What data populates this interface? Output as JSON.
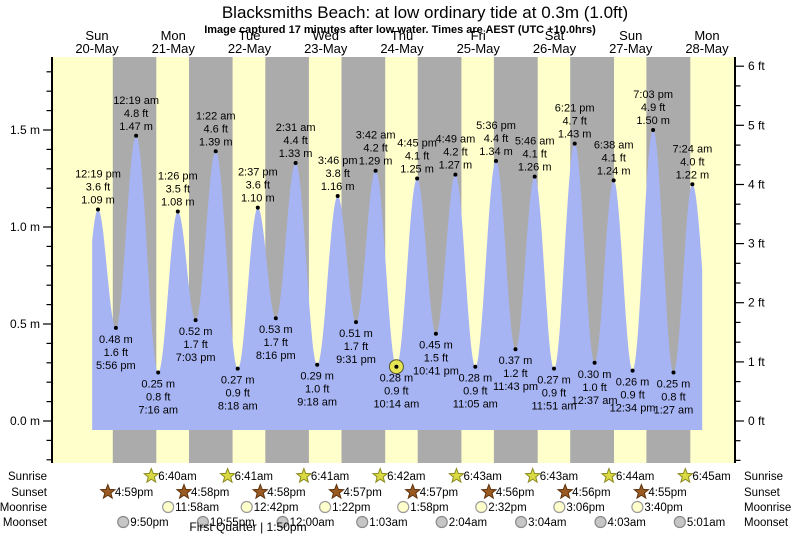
{
  "chart_data": {
    "type": "area",
    "title": "Blacksmiths Beach: at low  ordinary tide at 0.3m (1.0ft)",
    "subtitle": "Image captured 17 minutes after low water. Times are AEST (UTC +10.0hrs)",
    "ylabel_left_unit": "m",
    "ylabel_right_unit": "ft",
    "ylim_m": [
      -0.22,
      1.88
    ],
    "y_ticks_m": [
      "0.0 m",
      "0.5 m",
      "1.0 m",
      "1.5 m"
    ],
    "y_ticks_ft": [
      "0 ft",
      "1 ft",
      "2 ft",
      "3 ft",
      "4 ft",
      "5 ft",
      "6 ft"
    ],
    "days": [
      {
        "name": "Sun",
        "date": "20-May"
      },
      {
        "name": "Mon",
        "date": "21-May"
      },
      {
        "name": "Tue",
        "date": "22-May"
      },
      {
        "name": "Wed",
        "date": "23-May"
      },
      {
        "name": "Thu",
        "date": "24-May"
      },
      {
        "name": "Fri",
        "date": "25-May"
      },
      {
        "name": "Sat",
        "date": "26-May"
      },
      {
        "name": "Sun",
        "date": "27-May"
      },
      {
        "name": "Mon",
        "date": "28-May"
      }
    ],
    "tide_extremes": [
      {
        "kind": "high",
        "day_index": 0,
        "time": "12:19 pm",
        "height_ft": 3.6,
        "height_m": 1.09
      },
      {
        "kind": "low",
        "day_index": 0,
        "time": "5:56 pm",
        "height_ft": 1.6,
        "height_m": 0.48
      },
      {
        "kind": "high",
        "day_index": 1,
        "time": "12:19 am",
        "height_ft": 4.8,
        "height_m": 1.47
      },
      {
        "kind": "low",
        "day_index": 1,
        "time": "7:16 am",
        "height_ft": 0.8,
        "height_m": 0.25
      },
      {
        "kind": "high",
        "day_index": 1,
        "time": "1:26 pm",
        "height_ft": 3.5,
        "height_m": 1.08
      },
      {
        "kind": "low",
        "day_index": 1,
        "time": "7:03 pm",
        "height_ft": 1.7,
        "height_m": 0.52
      },
      {
        "kind": "high",
        "day_index": 2,
        "time": "1:22 am",
        "height_ft": 4.6,
        "height_m": 1.39
      },
      {
        "kind": "low",
        "day_index": 2,
        "time": "8:18 am",
        "height_ft": 0.9,
        "height_m": 0.27
      },
      {
        "kind": "high",
        "day_index": 2,
        "time": "2:37 pm",
        "height_ft": 3.6,
        "height_m": 1.1
      },
      {
        "kind": "low",
        "day_index": 2,
        "time": "8:16 pm",
        "height_ft": 1.7,
        "height_m": 0.53
      },
      {
        "kind": "high",
        "day_index": 3,
        "time": "2:31 am",
        "height_ft": 4.4,
        "height_m": 1.33
      },
      {
        "kind": "low",
        "day_index": 3,
        "time": "9:18 am",
        "height_ft": 1.0,
        "height_m": 0.29
      },
      {
        "kind": "high",
        "day_index": 3,
        "time": "3:46 pm",
        "height_ft": 3.8,
        "height_m": 1.16
      },
      {
        "kind": "low",
        "day_index": 3,
        "time": "9:31 pm",
        "height_ft": 1.7,
        "height_m": 0.51
      },
      {
        "kind": "high",
        "day_index": 4,
        "time": "3:42 am",
        "height_ft": 4.2,
        "height_m": 1.29
      },
      {
        "kind": "low",
        "day_index": 4,
        "time": "10:14 am",
        "height_ft": 0.9,
        "height_m": 0.28,
        "now": true
      },
      {
        "kind": "high",
        "day_index": 4,
        "time": "4:45 pm",
        "height_ft": 4.1,
        "height_m": 1.25
      },
      {
        "kind": "low",
        "day_index": 4,
        "time": "10:41 pm",
        "height_ft": 1.5,
        "height_m": 0.45
      },
      {
        "kind": "high",
        "day_index": 5,
        "time": "4:49 am",
        "height_ft": 4.2,
        "height_m": 1.27
      },
      {
        "kind": "low",
        "day_index": 5,
        "time": "11:05 am",
        "height_ft": 0.9,
        "height_m": 0.28
      },
      {
        "kind": "high",
        "day_index": 5,
        "time": "5:36 pm",
        "height_ft": 4.4,
        "height_m": 1.34
      },
      {
        "kind": "low",
        "day_index": 5,
        "time": "11:43 pm",
        "height_ft": 1.2,
        "height_m": 0.37
      },
      {
        "kind": "high",
        "day_index": 6,
        "time": "5:46 am",
        "height_ft": 4.1,
        "height_m": 1.26
      },
      {
        "kind": "low",
        "day_index": 6,
        "time": "11:51 am",
        "height_ft": 0.9,
        "height_m": 0.27
      },
      {
        "kind": "high",
        "day_index": 6,
        "time": "6:21 pm",
        "height_ft": 4.7,
        "height_m": 1.43
      },
      {
        "kind": "low",
        "day_index": 7,
        "time": "12:37 am",
        "height_ft": 1.0,
        "height_m": 0.3
      },
      {
        "kind": "high",
        "day_index": 7,
        "time": "6:38 am",
        "height_ft": 4.1,
        "height_m": 1.24
      },
      {
        "kind": "low",
        "day_index": 7,
        "time": "12:34 pm",
        "height_ft": 0.9,
        "height_m": 0.26
      },
      {
        "kind": "high",
        "day_index": 7,
        "time": "7:03 pm",
        "height_ft": 4.9,
        "height_m": 1.5
      },
      {
        "kind": "low",
        "day_index": 8,
        "time": "1:27 am",
        "height_ft": 0.8,
        "height_m": 0.25
      },
      {
        "kind": "high",
        "day_index": 8,
        "time": "7:24 am",
        "height_ft": 4.0,
        "height_m": 1.22
      }
    ],
    "now_marker": {
      "tide_index": 15
    }
  },
  "astro": {
    "row_labels": [
      "Sunrise",
      "Sunset",
      "Moonrise",
      "Moonset"
    ],
    "sunrise_icon": "star",
    "sunset_icon": "star",
    "moonrise_icon": "circle",
    "moonset_icon": "circle",
    "sunrise": [
      {
        "day_index": 1,
        "time": "6:40am"
      },
      {
        "day_index": 2,
        "time": "6:41am"
      },
      {
        "day_index": 3,
        "time": "6:41am"
      },
      {
        "day_index": 4,
        "time": "6:42am"
      },
      {
        "day_index": 5,
        "time": "6:43am"
      },
      {
        "day_index": 6,
        "time": "6:43am"
      },
      {
        "day_index": 7,
        "time": "6:44am"
      },
      {
        "day_index": 8,
        "time": "6:45am"
      }
    ],
    "sunset": [
      {
        "day_index": 0,
        "time": "4:59pm"
      },
      {
        "day_index": 1,
        "time": "4:58pm"
      },
      {
        "day_index": 2,
        "time": "4:58pm"
      },
      {
        "day_index": 3,
        "time": "4:57pm"
      },
      {
        "day_index": 4,
        "time": "4:57pm"
      },
      {
        "day_index": 5,
        "time": "4:56pm"
      },
      {
        "day_index": 6,
        "time": "4:56pm"
      },
      {
        "day_index": 7,
        "time": "4:55pm"
      }
    ],
    "moonrise": [
      {
        "day_index": 1,
        "time": "11:58am"
      },
      {
        "day_index": 2,
        "time": "12:42pm"
      },
      {
        "day_index": 3,
        "time": "1:22pm"
      },
      {
        "day_index": 4,
        "time": "1:58pm"
      },
      {
        "day_index": 5,
        "time": "2:32pm"
      },
      {
        "day_index": 6,
        "time": "3:06pm"
      },
      {
        "day_index": 7,
        "time": "3:40pm"
      }
    ],
    "moonset": [
      {
        "day_index": 0,
        "time": "9:50pm"
      },
      {
        "day_index": 1,
        "time": "10:55pm"
      },
      {
        "day_index": 3,
        "time": "12:00am"
      },
      {
        "day_index": 4,
        "time": "1:03am"
      },
      {
        "day_index": 5,
        "time": "2:04am"
      },
      {
        "day_index": 6,
        "time": "3:04am"
      },
      {
        "day_index": 7,
        "time": "4:03am"
      },
      {
        "day_index": 8,
        "time": "5:01am"
      }
    ],
    "moon_phase_note": "First Quarter | 1:50pm"
  },
  "colors": {
    "day_band": "#ffffcc",
    "night_band": "#ababab",
    "tide_fill": "#a7b4f4",
    "day_label_red": "#f22c2c",
    "sunrise_star": "#d9d943",
    "sunrise_star_edge": "#8a8a20",
    "sunset_star": "#9a5b22",
    "sunset_star_edge": "#5f330e",
    "moonrise_fill": "#ffffcc",
    "moonrise_edge": "#9a9a9a",
    "moonset_fill": "#c6c6c6",
    "moonset_edge": "#8a8a8a",
    "now_marker_fill": "#e6e655",
    "now_marker_edge": "#55552a",
    "axis": "#000000"
  }
}
